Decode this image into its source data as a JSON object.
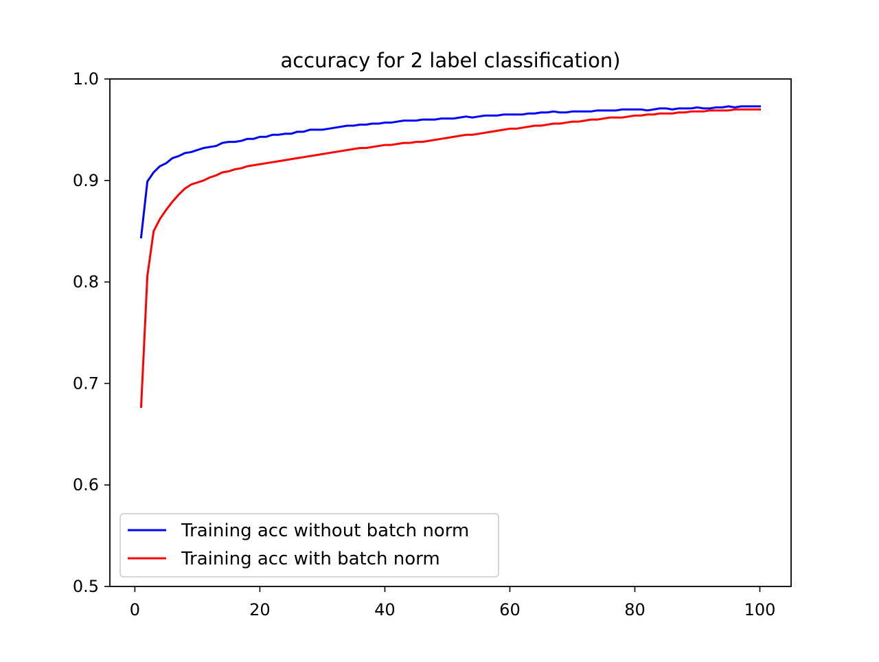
{
  "chart_data": {
    "type": "line",
    "title": "accuracy for 2 label classification)",
    "xlabel": "",
    "ylabel": "",
    "xlim": [
      -4,
      105
    ],
    "ylim": [
      0.5,
      1.0
    ],
    "xticks": [
      0,
      20,
      40,
      60,
      80,
      100
    ],
    "xtick_labels": [
      "0",
      "20",
      "40",
      "60",
      "80",
      "100"
    ],
    "yticks": [
      0.5,
      0.6,
      0.7,
      0.8,
      0.9,
      1.0
    ],
    "ytick_labels": [
      "0.5",
      "0.6",
      "0.7",
      "0.8",
      "0.9",
      "1.0"
    ],
    "grid": false,
    "legend_position": "lower-left",
    "x": [
      1,
      2,
      3,
      4,
      5,
      6,
      7,
      8,
      9,
      10,
      11,
      12,
      13,
      14,
      15,
      16,
      17,
      18,
      19,
      20,
      21,
      22,
      23,
      24,
      25,
      26,
      27,
      28,
      29,
      30,
      31,
      32,
      33,
      34,
      35,
      36,
      37,
      38,
      39,
      40,
      41,
      42,
      43,
      44,
      45,
      46,
      47,
      48,
      49,
      50,
      51,
      52,
      53,
      54,
      55,
      56,
      57,
      58,
      59,
      60,
      61,
      62,
      63,
      64,
      65,
      66,
      67,
      68,
      69,
      70,
      71,
      72,
      73,
      74,
      75,
      76,
      77,
      78,
      79,
      80,
      81,
      82,
      83,
      84,
      85,
      86,
      87,
      88,
      89,
      90,
      91,
      92,
      93,
      94,
      95,
      96,
      97,
      98,
      99,
      100
    ],
    "series": [
      {
        "name": "Training acc without batch norm",
        "color": "#0000ff",
        "values": [
          0.844,
          0.899,
          0.908,
          0.914,
          0.917,
          0.922,
          0.924,
          0.927,
          0.928,
          0.93,
          0.932,
          0.933,
          0.934,
          0.937,
          0.938,
          0.938,
          0.939,
          0.941,
          0.941,
          0.943,
          0.943,
          0.945,
          0.945,
          0.946,
          0.946,
          0.948,
          0.948,
          0.95,
          0.95,
          0.95,
          0.951,
          0.952,
          0.953,
          0.954,
          0.954,
          0.955,
          0.955,
          0.956,
          0.956,
          0.957,
          0.957,
          0.958,
          0.959,
          0.959,
          0.959,
          0.96,
          0.96,
          0.96,
          0.961,
          0.961,
          0.961,
          0.962,
          0.963,
          0.962,
          0.963,
          0.964,
          0.964,
          0.964,
          0.965,
          0.965,
          0.965,
          0.965,
          0.966,
          0.966,
          0.967,
          0.967,
          0.968,
          0.967,
          0.967,
          0.968,
          0.968,
          0.968,
          0.968,
          0.969,
          0.969,
          0.969,
          0.969,
          0.97,
          0.97,
          0.97,
          0.97,
          0.969,
          0.97,
          0.971,
          0.971,
          0.97,
          0.971,
          0.971,
          0.971,
          0.972,
          0.971,
          0.971,
          0.972,
          0.972,
          0.973,
          0.972,
          0.973,
          0.973,
          0.973,
          0.973
        ]
      },
      {
        "name": "Training acc with batch norm",
        "color": "#ff0000",
        "values": [
          0.677,
          0.806,
          0.85,
          0.862,
          0.871,
          0.879,
          0.886,
          0.892,
          0.896,
          0.898,
          0.9,
          0.903,
          0.905,
          0.908,
          0.909,
          0.911,
          0.912,
          0.914,
          0.915,
          0.916,
          0.917,
          0.918,
          0.919,
          0.92,
          0.921,
          0.922,
          0.923,
          0.924,
          0.925,
          0.926,
          0.927,
          0.928,
          0.929,
          0.93,
          0.931,
          0.932,
          0.932,
          0.933,
          0.934,
          0.935,
          0.935,
          0.936,
          0.937,
          0.937,
          0.938,
          0.938,
          0.939,
          0.94,
          0.941,
          0.942,
          0.943,
          0.944,
          0.945,
          0.945,
          0.946,
          0.947,
          0.948,
          0.949,
          0.95,
          0.951,
          0.951,
          0.952,
          0.953,
          0.954,
          0.954,
          0.955,
          0.956,
          0.956,
          0.957,
          0.958,
          0.958,
          0.959,
          0.96,
          0.96,
          0.961,
          0.962,
          0.962,
          0.962,
          0.963,
          0.964,
          0.964,
          0.965,
          0.965,
          0.966,
          0.966,
          0.966,
          0.967,
          0.967,
          0.968,
          0.968,
          0.968,
          0.969,
          0.969,
          0.969,
          0.969,
          0.97,
          0.97,
          0.97,
          0.97,
          0.97
        ]
      }
    ]
  }
}
